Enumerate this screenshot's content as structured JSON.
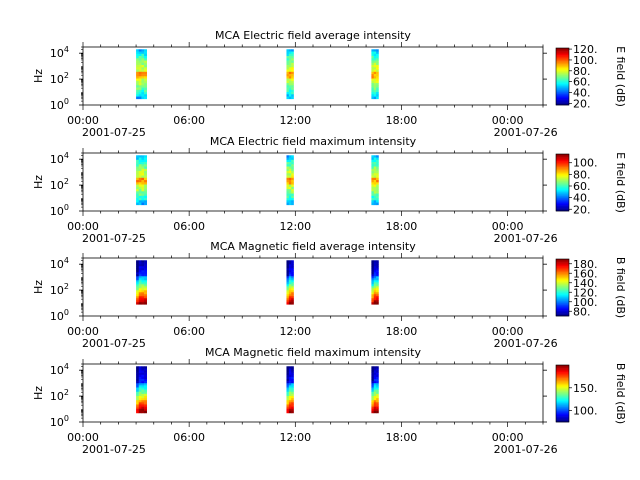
{
  "chart_data": [
    {
      "type": "heatmap",
      "title": "MCA  Electric field average intensity",
      "ylabel": "Hz",
      "y_scale": "log",
      "ylim": [
        1,
        30000
      ],
      "y_ticks": [
        {
          "value": 1,
          "base": "10",
          "exp": "0"
        },
        {
          "value": 100,
          "base": "10",
          "exp": "2"
        },
        {
          "value": 10000,
          "base": "10",
          "exp": "4"
        }
      ],
      "x_ticks": [
        "00:00",
        "06:00",
        "12:00",
        "18:00",
        "00:00"
      ],
      "x_dates": [
        "2001-07-25",
        "2001-07-26"
      ],
      "xlim_hours": [
        0,
        26
      ],
      "colorbar": {
        "label": "E field (dB)",
        "range": [
          17,
          122
        ],
        "ticks": [
          "20.",
          "40.",
          "60.",
          "80.",
          "100.",
          "120."
        ]
      },
      "data_intervals_hours": [
        [
          3.0,
          3.6
        ],
        [
          11.5,
          11.9
        ],
        [
          16.3,
          16.7
        ]
      ],
      "profile": "electric",
      "bottom_hz": 3,
      "top_hz": 20000
    },
    {
      "type": "heatmap",
      "title": "MCA  Electric field maximum intensity",
      "ylabel": "Hz",
      "y_scale": "log",
      "ylim": [
        1,
        30000
      ],
      "y_ticks": [
        {
          "value": 1,
          "base": "10",
          "exp": "0"
        },
        {
          "value": 100,
          "base": "10",
          "exp": "2"
        },
        {
          "value": 10000,
          "base": "10",
          "exp": "4"
        }
      ],
      "x_ticks": [
        "00:00",
        "06:00",
        "12:00",
        "18:00",
        "00:00"
      ],
      "x_dates": [
        "2001-07-25",
        "2001-07-26"
      ],
      "xlim_hours": [
        0,
        26
      ],
      "colorbar": {
        "label": "E field (dB)",
        "range": [
          17,
          115
        ],
        "ticks": [
          "20.",
          "40.",
          "60.",
          "80.",
          "100."
        ]
      },
      "data_intervals_hours": [
        [
          3.0,
          3.6
        ],
        [
          11.5,
          11.9
        ],
        [
          16.3,
          16.7
        ]
      ],
      "profile": "electric",
      "bottom_hz": 3,
      "top_hz": 20000
    },
    {
      "type": "heatmap",
      "title": "MCA  Magnetic field average intensity",
      "ylabel": "Hz",
      "y_scale": "log",
      "ylim": [
        1,
        30000
      ],
      "y_ticks": [
        {
          "value": 1,
          "base": "10",
          "exp": "0"
        },
        {
          "value": 100,
          "base": "10",
          "exp": "2"
        },
        {
          "value": 10000,
          "base": "10",
          "exp": "4"
        }
      ],
      "x_ticks": [
        "00:00",
        "06:00",
        "12:00",
        "18:00",
        "00:00"
      ],
      "x_dates": [
        "2001-07-25",
        "2001-07-26"
      ],
      "xlim_hours": [
        0,
        26
      ],
      "colorbar": {
        "label": "B field (dB)",
        "range": [
          70,
          190
        ],
        "ticks": [
          "80.",
          "100.",
          "120.",
          "140.",
          "160.",
          "180."
        ]
      },
      "data_intervals_hours": [
        [
          3.0,
          3.6
        ],
        [
          11.5,
          11.9
        ],
        [
          16.3,
          16.7
        ]
      ],
      "profile": "magnetic",
      "bottom_hz": 8,
      "top_hz": 20000
    },
    {
      "type": "heatmap",
      "title": "MCA  Magnetic field maximum intensity",
      "ylabel": "Hz",
      "y_scale": "log",
      "ylim": [
        1,
        30000
      ],
      "y_ticks": [
        {
          "value": 1,
          "base": "10",
          "exp": "0"
        },
        {
          "value": 100,
          "base": "10",
          "exp": "2"
        },
        {
          "value": 10000,
          "base": "10",
          "exp": "4"
        }
      ],
      "x_ticks": [
        "00:00",
        "06:00",
        "12:00",
        "18:00",
        "00:00"
      ],
      "x_dates": [
        "2001-07-25",
        "2001-07-26"
      ],
      "xlim_hours": [
        0,
        26
      ],
      "colorbar": {
        "label": "B field (dB)",
        "range": [
          75,
          200
        ],
        "ticks": [
          "100.",
          "150."
        ]
      },
      "data_intervals_hours": [
        [
          3.0,
          3.6
        ],
        [
          11.5,
          11.9
        ],
        [
          16.3,
          16.7
        ]
      ],
      "profile": "magnetic",
      "bottom_hz": 5,
      "top_hz": 20000
    }
  ]
}
